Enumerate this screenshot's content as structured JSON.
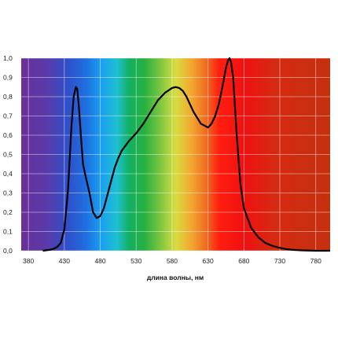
{
  "chart_data": {
    "type": "line",
    "title": "",
    "xlabel": "длина волны, нм",
    "ylabel": "",
    "xlim": [
      370,
      800
    ],
    "ylim": [
      0,
      1.0
    ],
    "grid": true,
    "background": "visible-spectrum gradient (violet to dark red)",
    "x_ticks": [
      {
        "value": 380,
        "label": "380"
      },
      {
        "value": 430,
        "label": "430"
      },
      {
        "value": 480,
        "label": "480"
      },
      {
        "value": 530,
        "label": "530"
      },
      {
        "value": 580,
        "label": "580"
      },
      {
        "value": 630,
        "label": "630"
      },
      {
        "value": 680,
        "label": "680"
      },
      {
        "value": 730,
        "label": "730"
      },
      {
        "value": 780,
        "label": "780"
      }
    ],
    "y_ticks": [
      {
        "value": 0.0,
        "label": "0,0"
      },
      {
        "value": 0.1,
        "label": "0,1"
      },
      {
        "value": 0.2,
        "label": "0,2"
      },
      {
        "value": 0.3,
        "label": "0,3"
      },
      {
        "value": 0.4,
        "label": "0,4"
      },
      {
        "value": 0.5,
        "label": "0,5"
      },
      {
        "value": 0.6,
        "label": "0,6"
      },
      {
        "value": 0.7,
        "label": "0,7"
      },
      {
        "value": 0.8,
        "label": "0,8"
      },
      {
        "value": 0.9,
        "label": "0,9"
      },
      {
        "value": 1.0,
        "label": "1,0"
      }
    ],
    "series": [
      {
        "color": "#000000",
        "x": [
          400,
          410,
          415,
          420,
          425,
          430,
          435,
          440,
          443,
          446,
          448,
          450,
          453,
          456,
          460,
          465,
          470,
          475,
          480,
          485,
          490,
          495,
          500,
          505,
          510,
          520,
          530,
          540,
          550,
          560,
          570,
          580,
          585,
          590,
          595,
          600,
          610,
          620,
          630,
          635,
          640,
          645,
          650,
          655,
          658,
          660,
          662,
          665,
          670,
          675,
          680,
          690,
          700,
          710,
          720,
          730,
          740,
          750,
          760,
          770,
          780,
          790,
          800
        ],
        "y": [
          0.0,
          0.005,
          0.01,
          0.02,
          0.04,
          0.11,
          0.31,
          0.65,
          0.8,
          0.85,
          0.84,
          0.76,
          0.6,
          0.45,
          0.38,
          0.3,
          0.2,
          0.17,
          0.18,
          0.22,
          0.29,
          0.36,
          0.43,
          0.48,
          0.52,
          0.57,
          0.61,
          0.66,
          0.72,
          0.78,
          0.82,
          0.845,
          0.85,
          0.845,
          0.83,
          0.8,
          0.72,
          0.66,
          0.64,
          0.66,
          0.7,
          0.76,
          0.85,
          0.95,
          0.99,
          1.0,
          0.98,
          0.9,
          0.6,
          0.35,
          0.22,
          0.12,
          0.07,
          0.04,
          0.025,
          0.015,
          0.008,
          0.004,
          0.002,
          0.001,
          0.0,
          0.0,
          0.0
        ]
      }
    ]
  }
}
